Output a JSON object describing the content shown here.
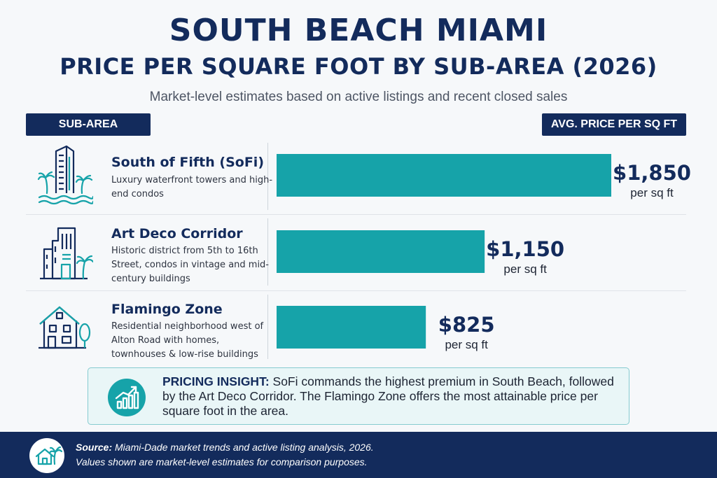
{
  "header": {
    "title": "SOUTH BEACH MIAMI",
    "subtitle": "PRICE PER SQUARE FOOT BY SUB-AREA (2026)",
    "tagline": "Market-level estimates based on active listings and recent closed sales"
  },
  "columns": {
    "left": "SUB-AREA",
    "right": "AVG. PRICE PER SQ FT"
  },
  "chart_data": {
    "type": "bar",
    "orientation": "horizontal",
    "categories": [
      "South of Fifth (SoFi)",
      "Art Deco Corridor",
      "Flamingo Zone"
    ],
    "values": [
      1850,
      1150,
      825
    ],
    "value_labels": [
      "$1,850",
      "$1,150",
      "$825"
    ],
    "unit_label": "per sq ft",
    "bar_color": "#16a3a9",
    "grid": false
  },
  "rows": [
    {
      "name": "South of Fifth (SoFi)",
      "desc": "Luxury waterfront towers and high-end condos",
      "icon": "tower-palm-waves-icon"
    },
    {
      "name": "Art Deco Corridor",
      "desc": "Historic district from 5th to 16th Street, condos in vintage and mid-century buildings",
      "icon": "art-deco-building-palm-icon"
    },
    {
      "name": "Flamingo Zone",
      "desc": "Residential neighborhood west of Alton Road with homes, townhouses & low-rise buildings",
      "icon": "house-tree-icon"
    }
  ],
  "insight": {
    "label": "PRICING INSIGHT:",
    "text": " SoFi commands the highest premium in South Beach, followed by the Art Deco Corridor. The Flamingo Zone offers the most attainable price per square foot in the area.",
    "icon": "trend-chart-icon"
  },
  "footer": {
    "source_label": "Source:",
    "source_text": " Miami-Dade market trends and active listing analysis, 2026.",
    "note": "Values shown are market-level estimates for comparison purposes.",
    "icon": "house-palm-icon"
  },
  "colors": {
    "navy": "#132b5c",
    "teal": "#16a3a9",
    "background": "#f6f8fa"
  }
}
